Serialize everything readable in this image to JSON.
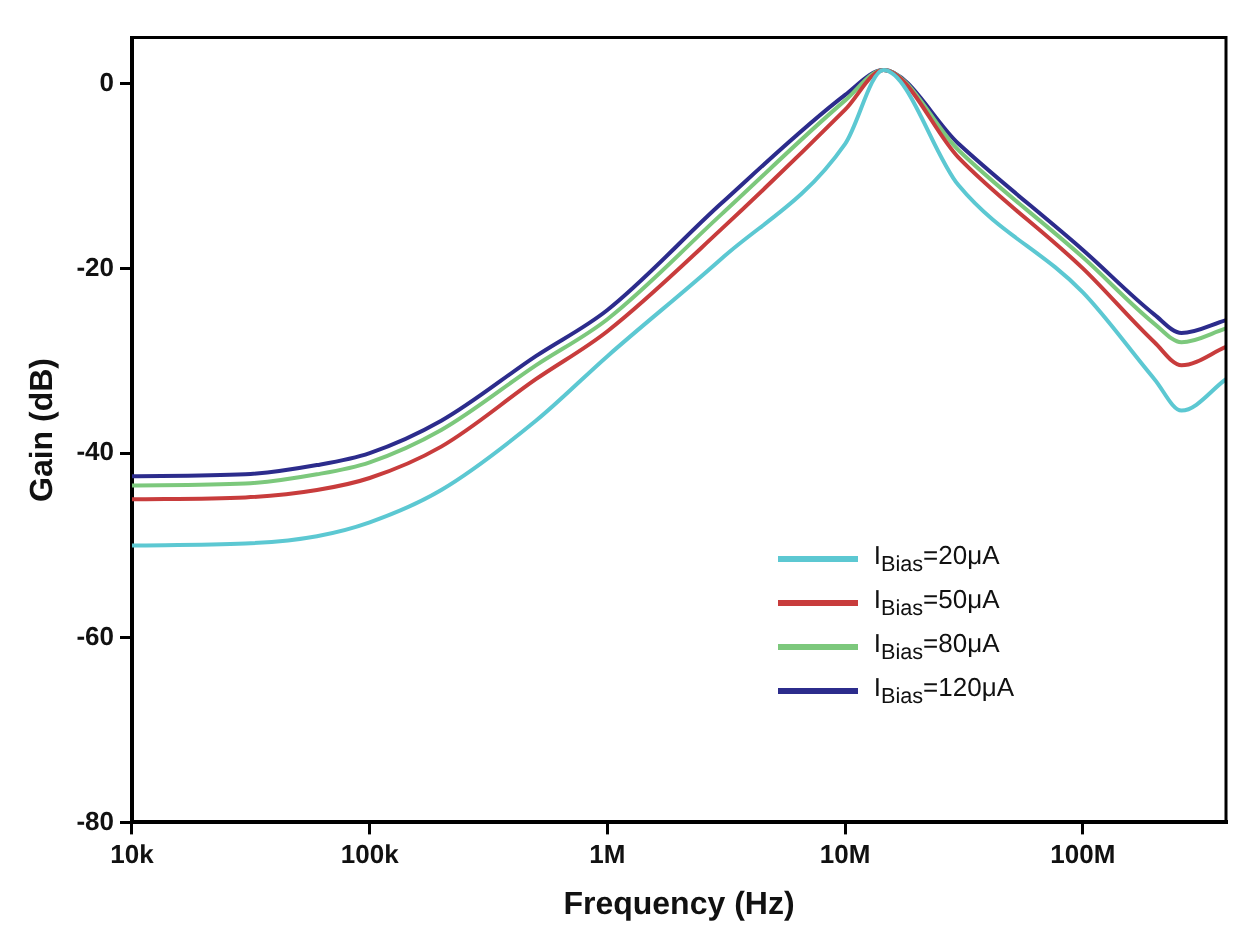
{
  "chart_data": {
    "type": "line",
    "xlabel": "Frequency (Hz)",
    "ylabel": "Gain (dB)",
    "log": "x",
    "x": [
      10000,
      30000,
      60000,
      100000,
      200000,
      500000,
      1000000,
      3000000,
      10000000,
      14500000,
      30000000,
      100000000,
      200000000,
      260000000,
      400000000
    ],
    "xlim": [
      10000,
      400000000
    ],
    "xticks": [
      {
        "value": 10000,
        "label": "10k"
      },
      {
        "value": 100000,
        "label": "100k"
      },
      {
        "value": 1000000,
        "label": "1M"
      },
      {
        "value": 10000000,
        "label": "10M"
      },
      {
        "value": 100000000,
        "label": "100M"
      }
    ],
    "ylim": [
      -80,
      5
    ],
    "yticks": [
      -80,
      -60,
      -40,
      -20,
      0
    ],
    "grid": false,
    "legend": "bottom right",
    "marker": "none",
    "line_style": "solid",
    "series": [
      {
        "name": "I$_{Bias}$=20μA",
        "color": "#5cc8d2",
        "values": [
          -50,
          -49.8,
          -49,
          -47.5,
          -44,
          -36.5,
          -29.5,
          -19,
          -6.5,
          1.5,
          -11,
          -22.6,
          -32,
          -35.4,
          -32
        ]
      },
      {
        "name": "I$_{Bias}$=50μA",
        "color": "#c83c3c",
        "values": [
          -45,
          -44.8,
          -44,
          -42.7,
          -39.3,
          -32,
          -26.8,
          -15.8,
          -2.8,
          1.5,
          -8,
          -20,
          -28,
          -30.5,
          -28.5
        ]
      },
      {
        "name": "I$_{Bias}$=80μA",
        "color": "#7cc87c",
        "values": [
          -43.5,
          -43.3,
          -42.3,
          -41,
          -37.5,
          -30.5,
          -25.5,
          -14.2,
          -1.8,
          1.5,
          -7.2,
          -18.8,
          -26,
          -28,
          -26.5
        ]
      },
      {
        "name": "I$_{Bias}$=120μA",
        "color": "#2c2c8c",
        "values": [
          -42.5,
          -42.3,
          -41.3,
          -40,
          -36.5,
          -29.5,
          -24.5,
          -13,
          -1.2,
          1.5,
          -6.5,
          -18,
          -25,
          -27,
          -25.6
        ]
      }
    ]
  }
}
